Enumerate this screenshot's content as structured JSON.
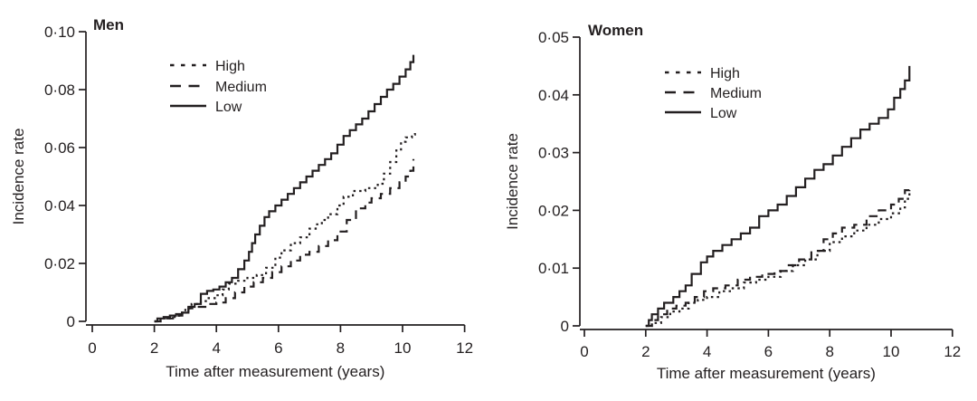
{
  "figure": {
    "background_color": "#ffffff",
    "line_color": "#231f20",
    "decimal_separator": "·"
  },
  "chart_data": [
    {
      "type": "line",
      "step": true,
      "title": "Men",
      "xlabel": "Time after measurement (years)",
      "ylabel": "Incidence rate",
      "xlim": [
        0,
        12
      ],
      "ylim": [
        0,
        0.1
      ],
      "grid": false,
      "legend_position": "upper-left-inside",
      "xticks": [
        0,
        2,
        4,
        6,
        8,
        10,
        12
      ],
      "xtick_labels": [
        "0",
        "2",
        "4",
        "6",
        "8",
        "10",
        "12"
      ],
      "yticks": [
        0,
        0.02,
        0.04,
        0.06,
        0.08,
        0.1
      ],
      "ytick_labels": [
        "0",
        "0·02",
        "0·04",
        "0·06",
        "0·08",
        "0·10"
      ],
      "series": [
        {
          "name": "High",
          "style": "dotted",
          "points": [
            [
              2.0,
              0
            ],
            [
              2.2,
              0.001
            ],
            [
              2.5,
              0.0015
            ],
            [
              2.8,
              0.003
            ],
            [
              3.0,
              0.0045
            ],
            [
              3.2,
              0.006
            ],
            [
              3.5,
              0.007
            ],
            [
              3.7,
              0.008
            ],
            [
              4.0,
              0.009
            ],
            [
              4.2,
              0.011
            ],
            [
              4.4,
              0.013
            ],
            [
              4.7,
              0.014
            ],
            [
              5.0,
              0.015
            ],
            [
              5.3,
              0.016
            ],
            [
              5.6,
              0.0185
            ],
            [
              5.9,
              0.022
            ],
            [
              6.1,
              0.0245
            ],
            [
              6.4,
              0.027
            ],
            [
              6.7,
              0.029
            ],
            [
              7.0,
              0.032
            ],
            [
              7.2,
              0.0335
            ],
            [
              7.4,
              0.035
            ],
            [
              7.6,
              0.037
            ],
            [
              7.9,
              0.04
            ],
            [
              8.1,
              0.043
            ],
            [
              8.4,
              0.045
            ],
            [
              8.8,
              0.046
            ],
            [
              9.2,
              0.0475
            ],
            [
              9.4,
              0.051
            ],
            [
              9.6,
              0.055
            ],
            [
              9.8,
              0.059
            ],
            [
              9.95,
              0.062
            ],
            [
              10.1,
              0.0635
            ],
            [
              10.3,
              0.0645
            ],
            [
              10.4,
              0.065
            ]
          ]
        },
        {
          "name": "Medium",
          "style": "dashed",
          "points": [
            [
              2.0,
              0
            ],
            [
              2.2,
              0.0005
            ],
            [
              2.4,
              0.001
            ],
            [
              2.6,
              0.002
            ],
            [
              2.9,
              0.0035
            ],
            [
              3.1,
              0.0045
            ],
            [
              3.4,
              0.005
            ],
            [
              3.7,
              0.006
            ],
            [
              4.0,
              0.0065
            ],
            [
              4.3,
              0.008
            ],
            [
              4.6,
              0.01
            ],
            [
              4.9,
              0.012
            ],
            [
              5.2,
              0.0135
            ],
            [
              5.5,
              0.015
            ],
            [
              5.8,
              0.017
            ],
            [
              6.1,
              0.019
            ],
            [
              6.4,
              0.021
            ],
            [
              6.7,
              0.023
            ],
            [
              7.0,
              0.024
            ],
            [
              7.3,
              0.026
            ],
            [
              7.6,
              0.028
            ],
            [
              7.9,
              0.031
            ],
            [
              8.2,
              0.035
            ],
            [
              8.5,
              0.039
            ],
            [
              8.8,
              0.041
            ],
            [
              9.0,
              0.0425
            ],
            [
              9.3,
              0.044
            ],
            [
              9.6,
              0.046
            ],
            [
              9.9,
              0.048
            ],
            [
              10.1,
              0.05
            ],
            [
              10.25,
              0.052
            ],
            [
              10.35,
              0.056
            ]
          ]
        },
        {
          "name": "Low",
          "style": "solid",
          "points": [
            [
              2.0,
              0
            ],
            [
              2.1,
              0.001
            ],
            [
              2.3,
              0.0015
            ],
            [
              2.5,
              0.002
            ],
            [
              2.7,
              0.0025
            ],
            [
              2.9,
              0.003
            ],
            [
              3.1,
              0.005
            ],
            [
              3.3,
              0.006
            ],
            [
              3.5,
              0.0095
            ],
            [
              3.7,
              0.0105
            ],
            [
              3.9,
              0.011
            ],
            [
              4.1,
              0.012
            ],
            [
              4.3,
              0.0135
            ],
            [
              4.5,
              0.015
            ],
            [
              4.7,
              0.018
            ],
            [
              4.9,
              0.021
            ],
            [
              5.05,
              0.024
            ],
            [
              5.15,
              0.027
            ],
            [
              5.25,
              0.03
            ],
            [
              5.4,
              0.033
            ],
            [
              5.55,
              0.036
            ],
            [
              5.7,
              0.038
            ],
            [
              5.9,
              0.04
            ],
            [
              6.1,
              0.042
            ],
            [
              6.3,
              0.044
            ],
            [
              6.5,
              0.046
            ],
            [
              6.7,
              0.048
            ],
            [
              6.9,
              0.05
            ],
            [
              7.1,
              0.052
            ],
            [
              7.3,
              0.054
            ],
            [
              7.5,
              0.056
            ],
            [
              7.7,
              0.058
            ],
            [
              7.9,
              0.061
            ],
            [
              8.1,
              0.064
            ],
            [
              8.3,
              0.066
            ],
            [
              8.5,
              0.068
            ],
            [
              8.7,
              0.07
            ],
            [
              8.9,
              0.0725
            ],
            [
              9.1,
              0.075
            ],
            [
              9.3,
              0.0775
            ],
            [
              9.5,
              0.08
            ],
            [
              9.7,
              0.082
            ],
            [
              9.9,
              0.0845
            ],
            [
              10.1,
              0.087
            ],
            [
              10.25,
              0.0895
            ],
            [
              10.35,
              0.092
            ]
          ]
        }
      ]
    },
    {
      "type": "line",
      "step": true,
      "title": "Women",
      "xlabel": "Time after measurement (years)",
      "ylabel": "Incidence rate",
      "xlim": [
        0,
        12
      ],
      "ylim": [
        0,
        0.05
      ],
      "grid": false,
      "legend_position": "upper-left-inside",
      "xticks": [
        0,
        2,
        4,
        6,
        8,
        10,
        12
      ],
      "xtick_labels": [
        "0",
        "2",
        "4",
        "6",
        "8",
        "10",
        "12"
      ],
      "yticks": [
        0,
        0.01,
        0.02,
        0.03,
        0.04,
        0.05
      ],
      "ytick_labels": [
        "0",
        "0·01",
        "0·02",
        "0·03",
        "0·04",
        "0·05"
      ],
      "series": [
        {
          "name": "High",
          "style": "dotted",
          "points": [
            [
              2.0,
              0
            ],
            [
              2.2,
              0.0005
            ],
            [
              2.5,
              0.0015
            ],
            [
              2.8,
              0.0025
            ],
            [
              3.1,
              0.003
            ],
            [
              3.4,
              0.004
            ],
            [
              3.7,
              0.0045
            ],
            [
              4.0,
              0.005
            ],
            [
              4.4,
              0.006
            ],
            [
              4.8,
              0.0065
            ],
            [
              5.2,
              0.0075
            ],
            [
              5.6,
              0.008
            ],
            [
              6.0,
              0.0085
            ],
            [
              6.4,
              0.0095
            ],
            [
              6.8,
              0.0105
            ],
            [
              7.2,
              0.0115
            ],
            [
              7.6,
              0.013
            ],
            [
              8.0,
              0.0145
            ],
            [
              8.4,
              0.0155
            ],
            [
              8.8,
              0.0165
            ],
            [
              9.2,
              0.0175
            ],
            [
              9.6,
              0.0185
            ],
            [
              10.0,
              0.0195
            ],
            [
              10.3,
              0.0205
            ],
            [
              10.45,
              0.022
            ],
            [
              10.6,
              0.023
            ]
          ]
        },
        {
          "name": "Medium",
          "style": "dashed",
          "points": [
            [
              2.0,
              0
            ],
            [
              2.2,
              0.001
            ],
            [
              2.4,
              0.002
            ],
            [
              2.7,
              0.003
            ],
            [
              3.0,
              0.0035
            ],
            [
              3.3,
              0.004
            ],
            [
              3.6,
              0.005
            ],
            [
              3.9,
              0.006
            ],
            [
              4.2,
              0.0065
            ],
            [
              4.6,
              0.007
            ],
            [
              5.0,
              0.008
            ],
            [
              5.4,
              0.0085
            ],
            [
              5.8,
              0.009
            ],
            [
              6.2,
              0.0095
            ],
            [
              6.6,
              0.0105
            ],
            [
              7.0,
              0.0115
            ],
            [
              7.4,
              0.013
            ],
            [
              7.8,
              0.015
            ],
            [
              8.1,
              0.016
            ],
            [
              8.4,
              0.017
            ],
            [
              8.8,
              0.0175
            ],
            [
              9.2,
              0.019
            ],
            [
              9.6,
              0.02
            ],
            [
              10.0,
              0.021
            ],
            [
              10.25,
              0.022
            ],
            [
              10.45,
              0.0235
            ],
            [
              10.6,
              0.0245
            ]
          ]
        },
        {
          "name": "Low",
          "style": "solid",
          "points": [
            [
              2.0,
              0
            ],
            [
              2.1,
              0.001
            ],
            [
              2.2,
              0.002
            ],
            [
              2.4,
              0.003
            ],
            [
              2.6,
              0.004
            ],
            [
              2.9,
              0.005
            ],
            [
              3.1,
              0.006
            ],
            [
              3.3,
              0.007
            ],
            [
              3.5,
              0.009
            ],
            [
              3.8,
              0.011
            ],
            [
              4.0,
              0.012
            ],
            [
              4.2,
              0.013
            ],
            [
              4.5,
              0.014
            ],
            [
              4.8,
              0.015
            ],
            [
              5.1,
              0.016
            ],
            [
              5.4,
              0.017
            ],
            [
              5.7,
              0.019
            ],
            [
              6.0,
              0.02
            ],
            [
              6.3,
              0.021
            ],
            [
              6.6,
              0.0225
            ],
            [
              6.9,
              0.024
            ],
            [
              7.2,
              0.0255
            ],
            [
              7.5,
              0.027
            ],
            [
              7.8,
              0.028
            ],
            [
              8.1,
              0.0295
            ],
            [
              8.4,
              0.031
            ],
            [
              8.7,
              0.0325
            ],
            [
              9.0,
              0.034
            ],
            [
              9.3,
              0.035
            ],
            [
              9.6,
              0.036
            ],
            [
              9.9,
              0.0375
            ],
            [
              10.1,
              0.0395
            ],
            [
              10.3,
              0.041
            ],
            [
              10.45,
              0.0425
            ],
            [
              10.6,
              0.045
            ]
          ]
        }
      ]
    }
  ]
}
